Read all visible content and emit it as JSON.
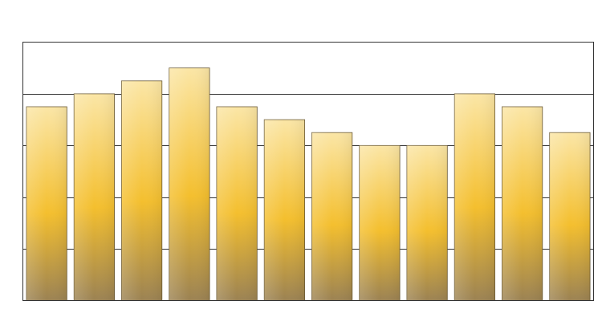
{
  "chart_data": {
    "type": "bar",
    "title": "",
    "xlabel": "",
    "ylabel": "",
    "categories": [
      "",
      "",
      "",
      "",
      "",
      "",
      "",
      "",
      "",
      "",
      "",
      ""
    ],
    "values": [
      7.5,
      8.0,
      8.5,
      9.0,
      7.5,
      7.0,
      6.5,
      6.0,
      6.0,
      8.0,
      7.5,
      6.5
    ],
    "ylim": [
      0,
      10
    ],
    "grid": true,
    "legend": "none",
    "bar_colors": {
      "top": "#fbe6a6",
      "middle": "#f4bf2e",
      "bottom": "#9b8253",
      "edge": "#6b5a36"
    },
    "frame_color": "#333333",
    "grid_color": "#333333"
  }
}
